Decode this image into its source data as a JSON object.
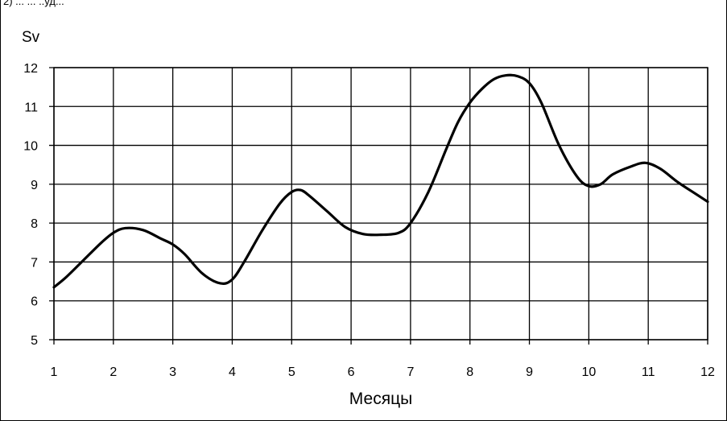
{
  "top_caption_fragment": "2) ... ... ..уд...",
  "chart_data": {
    "type": "line",
    "title": "",
    "xlabel": "Месяцы",
    "ylabel": "Sv",
    "xlim": [
      1,
      12
    ],
    "ylim": [
      5,
      12
    ],
    "x_ticks": [
      "1",
      "2",
      "3",
      "4",
      "5",
      "6",
      "7",
      "8",
      "9",
      "10",
      "11",
      "12"
    ],
    "y_ticks": [
      "5",
      "6",
      "7",
      "8",
      "9",
      "10",
      "11",
      "12"
    ],
    "grid": true,
    "legend": "none",
    "line_color": "#000000",
    "series": [
      {
        "x": [
          1.0,
          1.2,
          1.5,
          1.8,
          2.0,
          2.2,
          2.5,
          2.8,
          3.0,
          3.2,
          3.5,
          3.8,
          4.0,
          4.2,
          4.5,
          4.8,
          5.0,
          5.15,
          5.3,
          5.6,
          5.9,
          6.2,
          6.5,
          6.8,
          7.0,
          7.3,
          7.6,
          7.8,
          8.0,
          8.2,
          8.4,
          8.6,
          8.8,
          9.0,
          9.2,
          9.5,
          9.8,
          10.0,
          10.2,
          10.4,
          10.7,
          10.95,
          11.2,
          11.5,
          11.8,
          12.0
        ],
        "y": [
          6.35,
          6.6,
          7.05,
          7.5,
          7.75,
          7.87,
          7.82,
          7.6,
          7.45,
          7.2,
          6.7,
          6.45,
          6.55,
          7.0,
          7.8,
          8.5,
          8.8,
          8.85,
          8.7,
          8.3,
          7.9,
          7.72,
          7.7,
          7.75,
          8.0,
          8.8,
          9.9,
          10.6,
          11.1,
          11.45,
          11.7,
          11.8,
          11.78,
          11.6,
          11.1,
          10.0,
          9.2,
          8.95,
          9.0,
          9.25,
          9.45,
          9.55,
          9.4,
          9.05,
          8.75,
          8.55
        ]
      }
    ]
  }
}
